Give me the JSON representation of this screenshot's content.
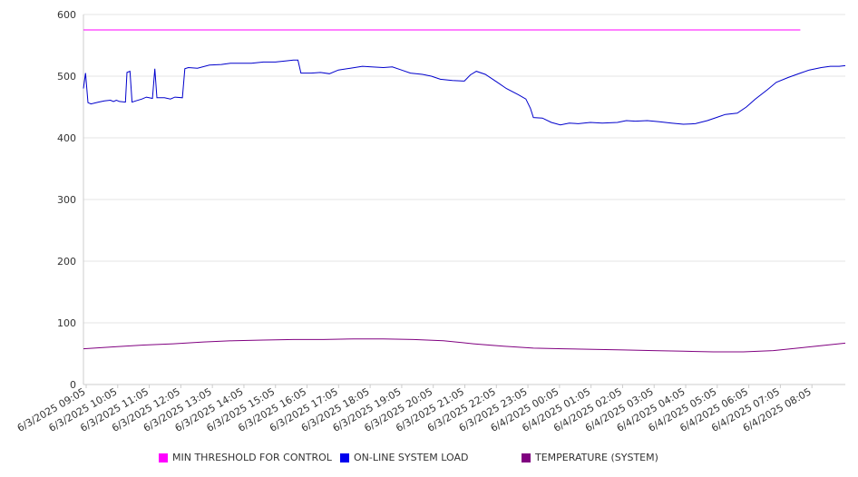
{
  "chart_data": {
    "type": "line",
    "title": "",
    "xlabel": "",
    "ylabel": "",
    "ylim": [
      0,
      600
    ],
    "yticks": [
      "0",
      "100",
      "200",
      "300",
      "400",
      "500",
      "600"
    ],
    "xtick_labels": [
      "6/3/2025 09:05",
      "6/3/2025 10:05",
      "6/3/2025 11:05",
      "6/3/2025 12:05",
      "6/3/2025 13:05",
      "6/3/2025 14:05",
      "6/3/2025 15:05",
      "6/3/2025 16:05",
      "6/3/2025 17:05",
      "6/3/2025 18:05",
      "6/3/2025 19:05",
      "6/3/2025 20:05",
      "6/3/2025 21:05",
      "6/3/2025 22:05",
      "6/3/2025 23:05",
      "6/4/2025 00:05",
      "6/4/2025 01:05",
      "6/4/2025 02:05",
      "6/4/2025 03:05",
      "6/4/2025 04:05",
      "6/4/2025 05:05",
      "6/4/2025 06:05",
      "6/4/2025 07:05",
      "6/4/2025 08:05"
    ],
    "grid": true,
    "legend_position": "bottom",
    "series": [
      {
        "name": "MIN THRESHOLD FOR CONTROL",
        "color": "#ff00ff",
        "swatch": "#ff00ff",
        "x": [
          "6/3/2025 09:05",
          "6/4/2025 08:05"
        ],
        "points": [
          [
            0,
            575
          ],
          [
            23.9,
            575
          ]
        ]
      },
      {
        "name": "ON-LINE SYSTEM LOAD",
        "color": "#0000cc",
        "swatch": "#0000ee",
        "points": [
          [
            0,
            480
          ],
          [
            0.07,
            505
          ],
          [
            0.15,
            457
          ],
          [
            0.25,
            455
          ],
          [
            0.5,
            458
          ],
          [
            0.7,
            460
          ],
          [
            0.9,
            461
          ],
          [
            1.0,
            459
          ],
          [
            1.1,
            461
          ],
          [
            1.2,
            459
          ],
          [
            1.4,
            458
          ],
          [
            1.45,
            506
          ],
          [
            1.55,
            508
          ],
          [
            1.62,
            458
          ],
          [
            1.75,
            460
          ],
          [
            1.95,
            463
          ],
          [
            2.1,
            466
          ],
          [
            2.3,
            464
          ],
          [
            2.38,
            512
          ],
          [
            2.45,
            465
          ],
          [
            2.7,
            465
          ],
          [
            2.9,
            463
          ],
          [
            3.05,
            466
          ],
          [
            3.3,
            465
          ],
          [
            3.38,
            512
          ],
          [
            3.5,
            514
          ],
          [
            3.8,
            513
          ],
          [
            4.2,
            518
          ],
          [
            4.6,
            519
          ],
          [
            4.9,
            521
          ],
          [
            5.3,
            521
          ],
          [
            5.6,
            521
          ],
          [
            6.0,
            523
          ],
          [
            6.4,
            523
          ],
          [
            6.8,
            525
          ],
          [
            7.0,
            526
          ],
          [
            7.15,
            526
          ],
          [
            7.25,
            505
          ],
          [
            7.6,
            505
          ],
          [
            7.9,
            506
          ],
          [
            8.2,
            504
          ],
          [
            8.5,
            510
          ],
          [
            8.9,
            513
          ],
          [
            9.3,
            516
          ],
          [
            9.6,
            515
          ],
          [
            10.0,
            514
          ],
          [
            10.3,
            515
          ],
          [
            10.6,
            510
          ],
          [
            10.9,
            505
          ],
          [
            11.3,
            503
          ],
          [
            11.6,
            500
          ],
          [
            11.9,
            495
          ],
          [
            12.3,
            493
          ],
          [
            12.7,
            492
          ],
          [
            12.9,
            502
          ],
          [
            13.1,
            508
          ],
          [
            13.4,
            503
          ],
          [
            13.8,
            490
          ],
          [
            14.1,
            480
          ],
          [
            14.5,
            470
          ],
          [
            14.75,
            463
          ],
          [
            14.9,
            448
          ],
          [
            15.0,
            433
          ],
          [
            15.3,
            432
          ],
          [
            15.6,
            425
          ],
          [
            15.9,
            421
          ],
          [
            16.2,
            424
          ],
          [
            16.5,
            423
          ],
          [
            16.9,
            425
          ],
          [
            17.3,
            424
          ],
          [
            17.8,
            425
          ],
          [
            18.1,
            428
          ],
          [
            18.4,
            427
          ],
          [
            18.8,
            428
          ],
          [
            19.2,
            426
          ],
          [
            19.6,
            424
          ],
          [
            20.0,
            422
          ],
          [
            20.4,
            423
          ],
          [
            20.8,
            428
          ],
          [
            21.1,
            433
          ],
          [
            21.4,
            438
          ],
          [
            21.8,
            440
          ],
          [
            22.1,
            450
          ],
          [
            22.4,
            463
          ],
          [
            22.8,
            478
          ],
          [
            23.1,
            490
          ],
          [
            23.5,
            498
          ],
          [
            23.9,
            505
          ],
          [
            24.2,
            510
          ],
          [
            24.6,
            514
          ],
          [
            24.9,
            516
          ],
          [
            25.2,
            516
          ],
          [
            25.4,
            517
          ]
        ]
      },
      {
        "name": "TEMPERATURE (SYSTEM)",
        "color": "#800080",
        "swatch": "#800080",
        "points": [
          [
            0,
            58
          ],
          [
            1,
            61
          ],
          [
            2,
            64
          ],
          [
            3,
            66
          ],
          [
            4,
            69
          ],
          [
            5,
            71
          ],
          [
            6,
            72
          ],
          [
            7,
            73
          ],
          [
            8,
            73
          ],
          [
            9,
            74
          ],
          [
            10,
            74
          ],
          [
            11,
            73
          ],
          [
            12,
            71
          ],
          [
            13,
            66
          ],
          [
            14,
            62
          ],
          [
            15,
            59
          ],
          [
            16,
            58
          ],
          [
            17,
            57
          ],
          [
            18,
            56
          ],
          [
            19,
            55
          ],
          [
            20,
            54
          ],
          [
            21,
            53
          ],
          [
            22,
            53
          ],
          [
            23,
            55
          ],
          [
            24,
            60
          ],
          [
            25,
            65
          ],
          [
            25.4,
            67
          ]
        ]
      }
    ]
  }
}
